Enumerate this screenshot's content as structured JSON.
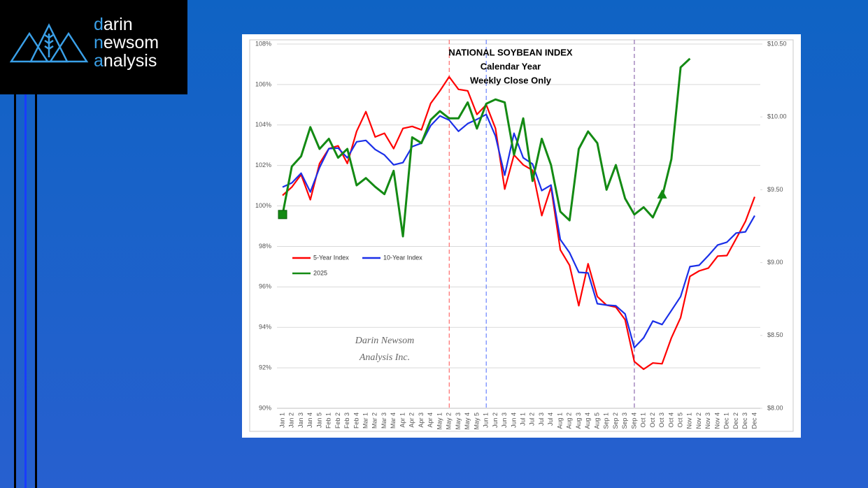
{
  "logo": {
    "lines": [
      [
        "d",
        "arin"
      ],
      [
        "n",
        "ewsom"
      ],
      [
        "a",
        "nalysis"
      ]
    ]
  },
  "chart_data": {
    "type": "line",
    "title_lines": [
      "NATIONAL SOYBEAN INDEX",
      "Calendar Year",
      "Weekly Close Only"
    ],
    "annotation_lines": [
      "Darin Newsom",
      "Analysis Inc."
    ],
    "categories": [
      "Jan 1",
      "Jan 2",
      "Jan 3",
      "Jan 4",
      "Jan 5",
      "Feb 1",
      "Feb 2",
      "Feb 3",
      "Feb 4",
      "Mar 1",
      "Mar 2",
      "Mar 3",
      "Mar 4",
      "Apr 1",
      "Apr 2",
      "Apr 3",
      "Apr 4",
      "May 1",
      "May 2",
      "May 3",
      "May 4",
      "May 5",
      "Jun 1",
      "Jun 2",
      "Jun 3",
      "Jun 4",
      "Jul 1",
      "Jul 2",
      "Jul 3",
      "Jul 4",
      "Aug 1",
      "Aug 2",
      "Aug 3",
      "Aug 4",
      "Aug 5",
      "Sep 1",
      "Sep 2",
      "Sep 3",
      "Sep 4",
      "Oct 1",
      "Oct 2",
      "Oct 3",
      "Oct 4",
      "Oct 5",
      "Nov 1",
      "Nov 2",
      "Nov 3",
      "Nov 4",
      "Dec 1",
      "Dec 2",
      "Dec 3",
      "Dec 4"
    ],
    "series": [
      {
        "name": "5-Year Index",
        "color": "#ff0000",
        "axis": "y",
        "values": [
          100.52,
          100.93,
          101.55,
          100.31,
          102.1,
          102.83,
          102.97,
          102.1,
          103.69,
          104.66,
          103.41,
          103.59,
          102.83,
          103.83,
          103.93,
          103.76,
          105.07,
          105.69,
          106.38,
          105.76,
          105.69,
          104.52,
          105.0,
          103.83,
          100.83,
          102.52,
          102.03,
          101.76,
          99.52,
          100.93,
          97.83,
          97.07,
          95.07,
          97.14,
          95.52,
          95.1,
          95.0,
          94.38,
          92.31,
          91.93,
          92.24,
          92.2,
          93.48,
          94.48,
          96.52,
          96.79,
          96.93,
          97.52,
          97.55,
          98.38,
          99.24,
          100.45
        ]
      },
      {
        "name": "10-Year Index",
        "color": "#1a2fe8",
        "axis": "y",
        "values": [
          100.93,
          101.14,
          101.62,
          100.69,
          101.9,
          102.83,
          102.86,
          102.38,
          103.17,
          103.24,
          102.79,
          102.52,
          102.03,
          102.14,
          102.93,
          103.1,
          103.97,
          104.45,
          104.24,
          103.69,
          104.07,
          104.28,
          104.52,
          103.45,
          101.52,
          103.59,
          102.38,
          102.07,
          100.76,
          101.03,
          98.34,
          97.69,
          96.72,
          96.69,
          95.17,
          95.1,
          95.07,
          94.66,
          93.0,
          93.48,
          94.31,
          94.14,
          94.83,
          95.52,
          97.0,
          97.07,
          97.55,
          98.07,
          98.21,
          98.66,
          98.72,
          99.52
        ]
      },
      {
        "name": "2025",
        "color": "#138a13",
        "axis": "y2",
        "markers": [
          {
            "category": "Jan 1",
            "shape": "square"
          },
          {
            "category": "Oct 3",
            "shape": "triangle"
          }
        ],
        "values": [
          9.33,
          9.66,
          9.73,
          9.93,
          9.78,
          9.85,
          9.72,
          9.78,
          9.53,
          9.58,
          9.52,
          9.47,
          9.63,
          9.18,
          9.86,
          9.82,
          9.98,
          10.04,
          9.99,
          9.99,
          10.1,
          9.92,
          10.09,
          10.12,
          10.1,
          9.74,
          9.99,
          9.56,
          9.85,
          9.67,
          9.35,
          9.29,
          9.78,
          9.9,
          9.82,
          9.5,
          9.67,
          9.44,
          9.33,
          9.38,
          9.31,
          9.45,
          9.71,
          10.34,
          10.4,
          null,
          null,
          null,
          null,
          null,
          null,
          null
        ]
      }
    ],
    "ylim": [
      90,
      108
    ],
    "yticks": [
      {
        "value": 90,
        "label": "90%"
      },
      {
        "value": 92,
        "label": "92%"
      },
      {
        "value": 94,
        "label": "94%"
      },
      {
        "value": 96,
        "label": "96%"
      },
      {
        "value": 98,
        "label": "98%"
      },
      {
        "value": 100,
        "label": "100%"
      },
      {
        "value": 102,
        "label": "102%"
      },
      {
        "value": 104,
        "label": "104%"
      },
      {
        "value": 106,
        "label": "106%"
      },
      {
        "value": 108,
        "label": "108%"
      }
    ],
    "y2lim": [
      8,
      10.5
    ],
    "y2ticks": [
      {
        "value": 8,
        "label": "$8.00"
      },
      {
        "value": 8.5,
        "label": "$8.50"
      },
      {
        "value": 9,
        "label": "$9.00"
      },
      {
        "value": 9.5,
        "label": "$9.50"
      },
      {
        "value": 10,
        "label": "$10.00"
      },
      {
        "value": 10.5,
        "label": "$10.50"
      }
    ],
    "grid": true,
    "legend_position": "lower-left",
    "reference_lines": [
      {
        "category": "May 2",
        "color": "#ff4d4d"
      },
      {
        "category": "Jun 1",
        "color": "#4d6bff"
      },
      {
        "category": "Sep 4",
        "color": "#7a4fa0"
      }
    ]
  }
}
